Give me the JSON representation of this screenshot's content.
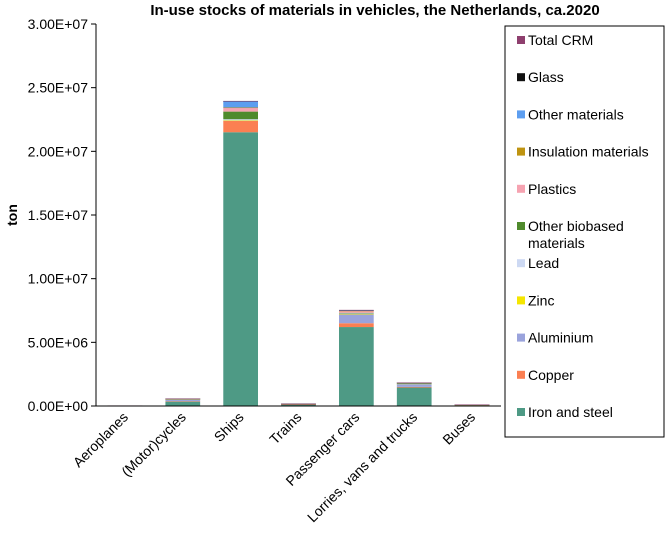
{
  "chart_data": {
    "type": "bar",
    "stacked": true,
    "title": "In-use stocks of materials in vehicles, the Netherlands, ca.2020",
    "xlabel": "",
    "ylabel": "ton",
    "ylim": [
      0,
      30000000
    ],
    "yticks": [
      "0.00E+00",
      "5.00E+06",
      "1.00E+07",
      "1.50E+07",
      "2.00E+07",
      "2.50E+07",
      "3.00E+07"
    ],
    "ytick_values": [
      0,
      5000000,
      10000000,
      15000000,
      20000000,
      25000000,
      30000000
    ],
    "grid": false,
    "legend_position": "right",
    "categories": [
      "Aeroplanes",
      "(Motor)cycles",
      "Ships",
      "Trains",
      "Passenger cars",
      "Lorries, vans and trucks",
      "Buses"
    ],
    "series": [
      {
        "name": "Iron and steel",
        "color": "#4e9a85",
        "values": [
          20000,
          350000,
          21500000,
          120000,
          6200000,
          1450000,
          90000
        ]
      },
      {
        "name": "Copper",
        "color": "#fb7f52",
        "values": [
          2000,
          30000,
          900000,
          10000,
          300000,
          50000,
          5000
        ]
      },
      {
        "name": "Aluminium",
        "color": "#9aa3dc",
        "values": [
          20000,
          150000,
          0,
          30000,
          700000,
          220000,
          10000
        ]
      },
      {
        "name": "Zinc",
        "color": "#f5e600",
        "values": [
          0,
          3000,
          20000,
          2000,
          30000,
          10000,
          1000
        ]
      },
      {
        "name": "Lead",
        "color": "#cdd9f3",
        "values": [
          0,
          5000,
          100000,
          2000,
          40000,
          10000,
          1000
        ]
      },
      {
        "name": "Other biobased materials",
        "color": "#4f8a2c",
        "values": [
          0,
          10000,
          600000,
          5000,
          50000,
          20000,
          2000
        ]
      },
      {
        "name": "Plastics",
        "color": "#f6a3b1",
        "values": [
          2000,
          20000,
          300000,
          5000,
          150000,
          40000,
          3000
        ]
      },
      {
        "name": "Insulation materials",
        "color": "#bf9411",
        "values": [
          0,
          2000,
          20000,
          1000,
          10000,
          5000,
          500
        ]
      },
      {
        "name": "Other materials",
        "color": "#5d9ef0",
        "values": [
          0,
          10000,
          500000,
          5000,
          30000,
          20000,
          2000
        ]
      },
      {
        "name": "Glass",
        "color": "#111111",
        "values": [
          0,
          1000,
          10000,
          1000,
          20000,
          10000,
          500
        ]
      },
      {
        "name": "Total CRM",
        "color": "#8e3f6e",
        "values": [
          0,
          1000,
          10000,
          1000,
          20000,
          5000,
          500
        ]
      }
    ]
  }
}
